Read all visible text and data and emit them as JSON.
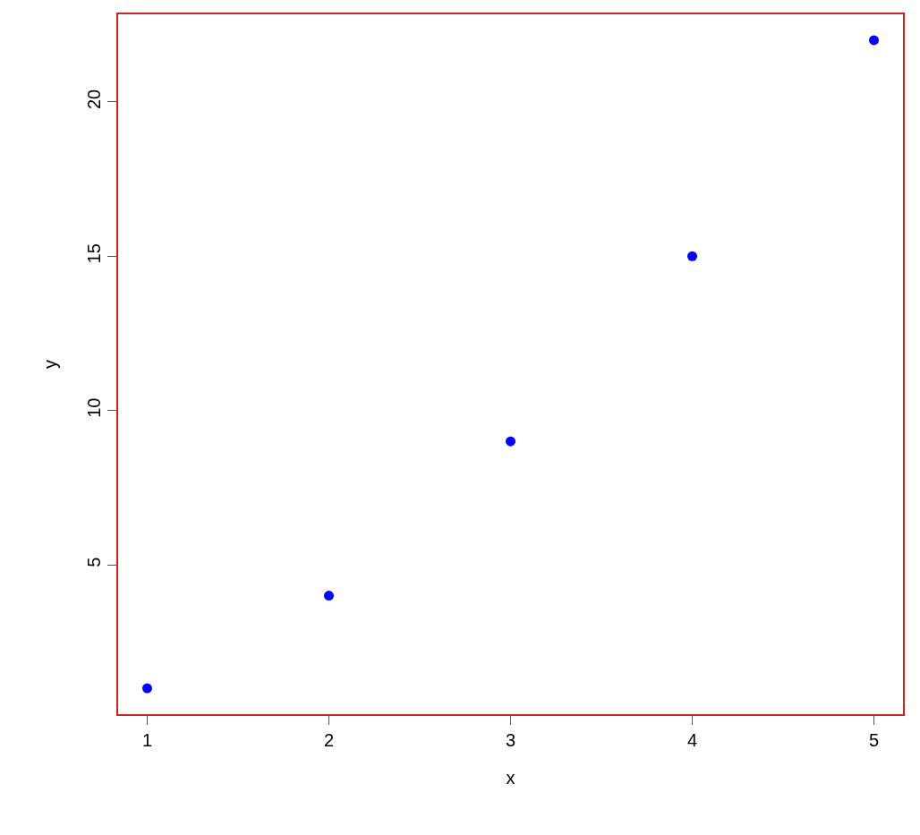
{
  "chart_data": {
    "type": "scatter",
    "xlabel": "x",
    "ylabel": "y",
    "x": [
      1,
      2,
      3,
      4,
      5
    ],
    "series": [
      {
        "color": "#0000ff",
        "values": [
          1,
          4,
          9,
          15,
          22
        ]
      }
    ],
    "marker": "circle",
    "xlim": [
      0.84,
      5.16
    ],
    "xticks": [
      1,
      2,
      3,
      4,
      5
    ],
    "ylim": [
      0.16,
      22.84
    ],
    "yticks": [
      5,
      10,
      15,
      20
    ]
  }
}
